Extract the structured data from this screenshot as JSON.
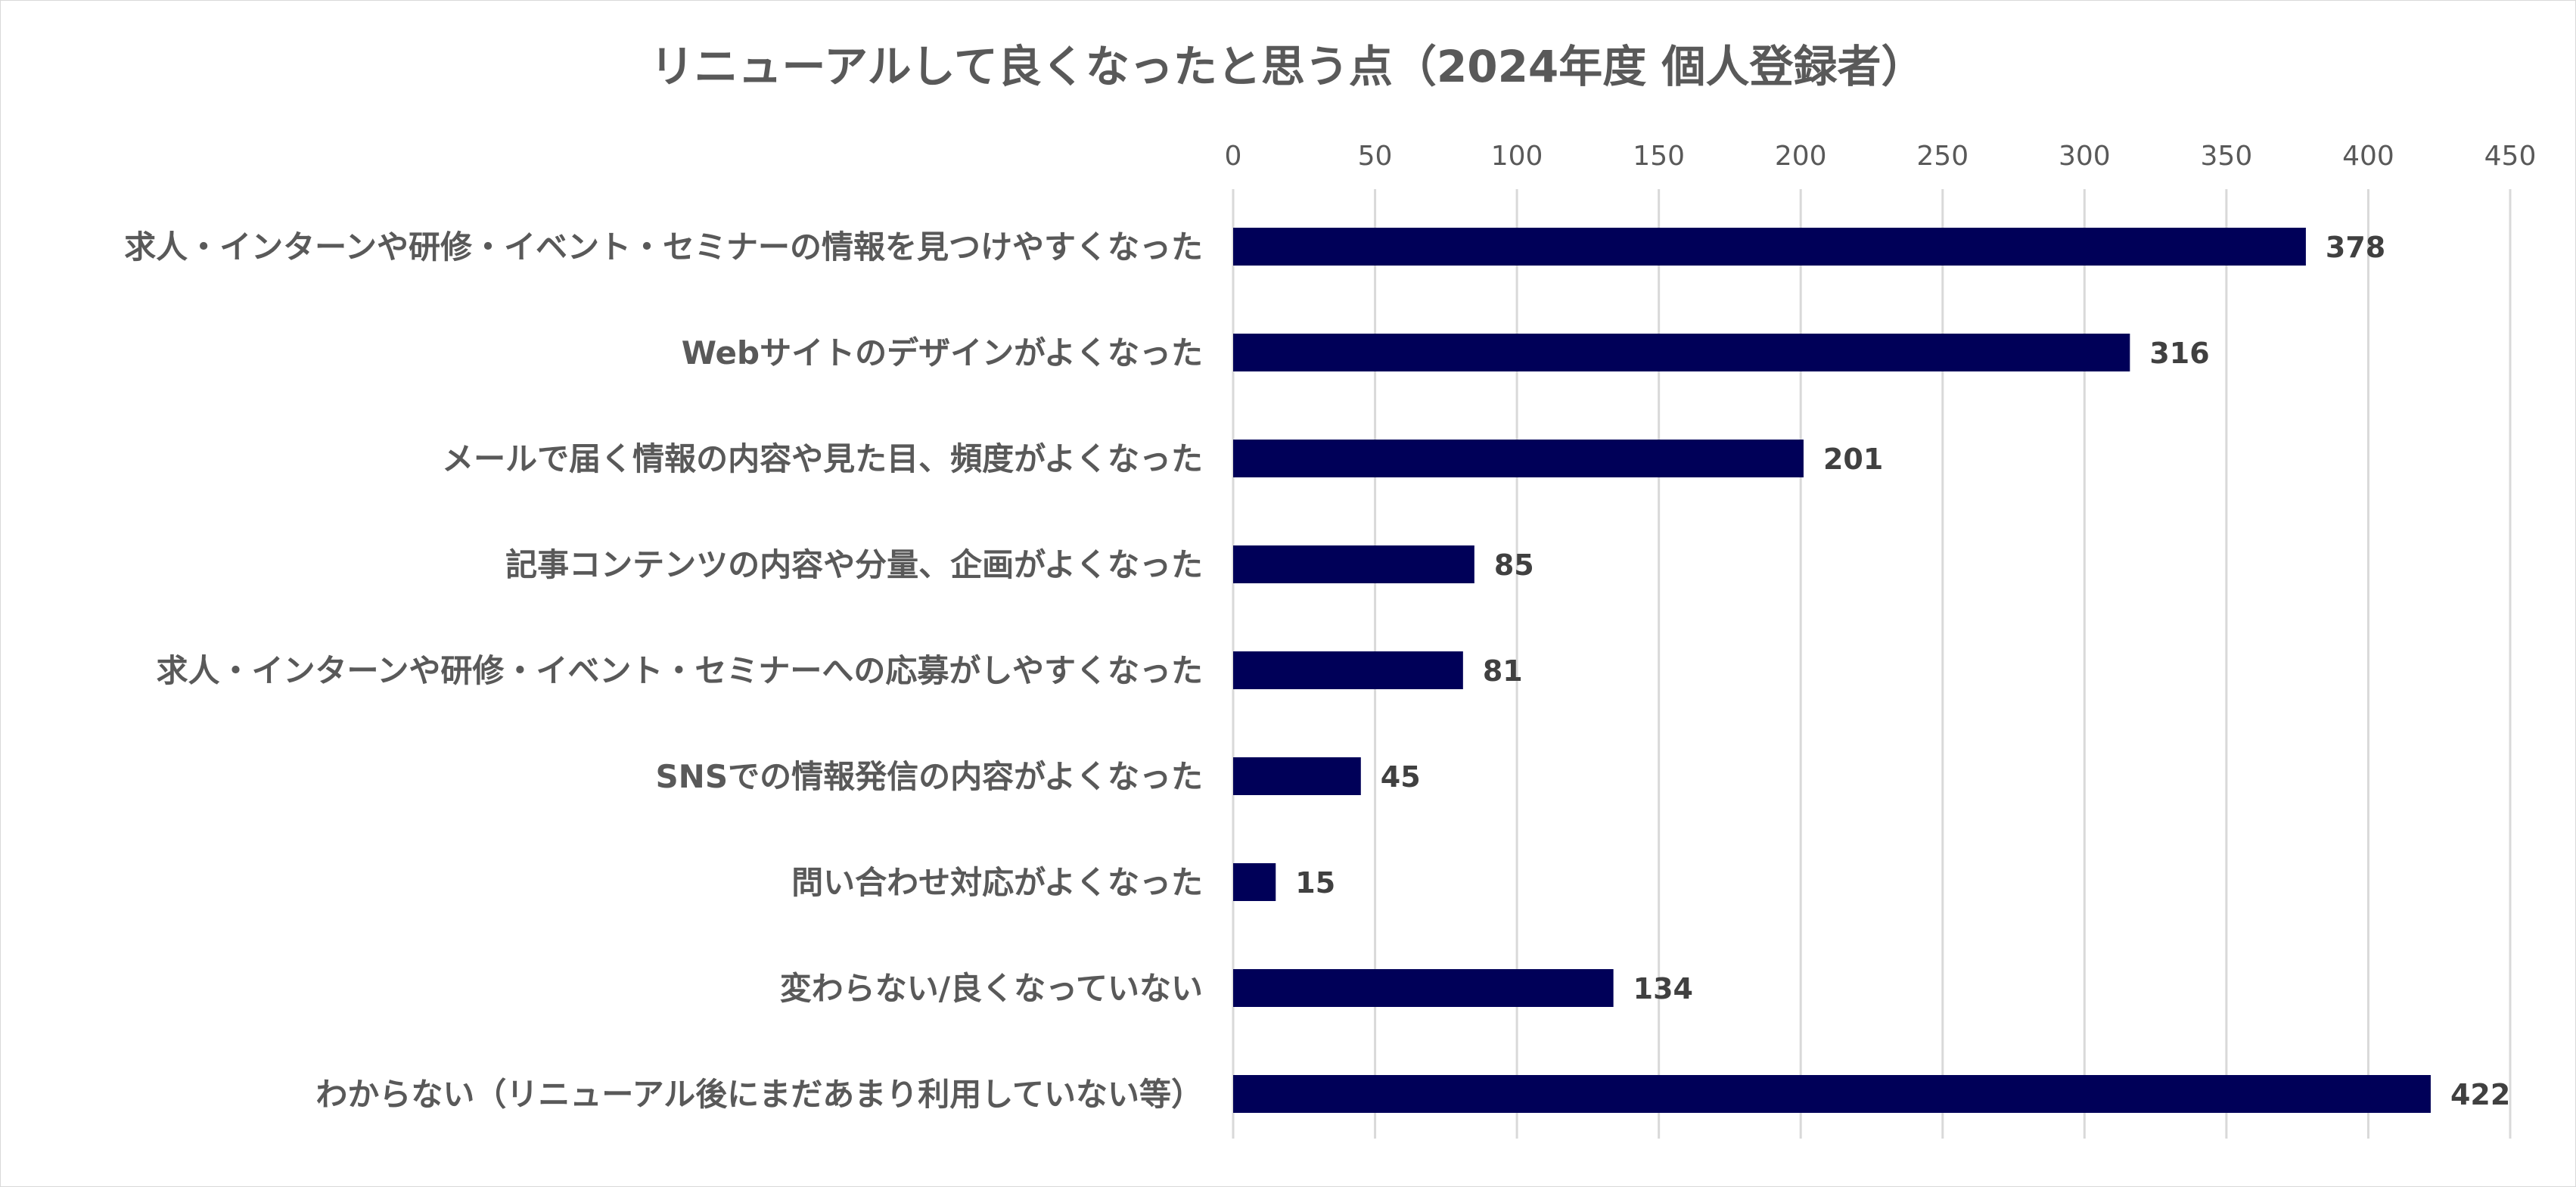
{
  "chart_data": {
    "type": "bar",
    "orientation": "horizontal",
    "title": "リニューアルして良くなったと思う点（2024年度 個人登録者）",
    "xlabel": "",
    "ylabel": "",
    "xlim": [
      0,
      450
    ],
    "ticks": [
      0,
      50,
      100,
      150,
      200,
      250,
      300,
      350,
      400,
      450
    ],
    "tick_labels": [
      "0",
      "50",
      "100",
      "150",
      "200",
      "250",
      "300",
      "350",
      "400",
      "450"
    ],
    "axis_position": "top",
    "grid": true,
    "legend": "none",
    "bar_color": "#000058",
    "categories": [
      "求人・インターンや研修・イベント・セミナーの情報を見つけやすくなった",
      "Webサイトのデザインがよくなった",
      "メールで届く情報の内容や見た目、頻度がよくなった",
      "記事コンテンツの内容や分量、企画がよくなった",
      "求人・インターンや研修・イベント・セミナーへの応募がしやすくなった",
      "SNSでの情報発信の内容がよくなった",
      "問い合わせ対応がよくなった",
      "変わらない/良くなっていない",
      "わからない（リニューアル後にまだあまり利用していない等）"
    ],
    "values": [
      378,
      316,
      201,
      85,
      81,
      45,
      15,
      134,
      422
    ],
    "value_labels": [
      "378",
      "316",
      "201",
      "85",
      "81",
      "45",
      "15",
      "134",
      "422"
    ]
  }
}
